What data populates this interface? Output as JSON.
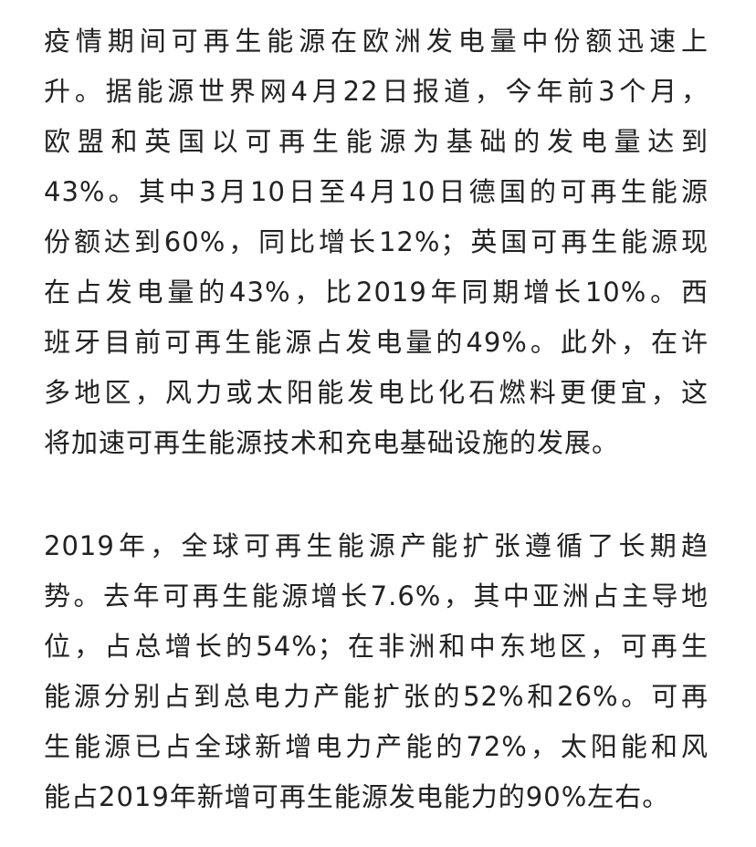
{
  "paragraphs": [
    {
      "lines": [
        "疫情期间可再生能源在欧洲发电量中份额迅速上",
        "升。据能源世界网4月22日报道，今年前3个月，",
        "欧盟和英国以可再生能源为基础的发电量达到",
        "43%。其中3月10日至4月10日德国的可再生能源",
        "份额达到60%，同比增长12%；英国可再生能源现",
        "在占发电量的43%，比2019年同期增长10%。西",
        "班牙目前可再生能源占发电量的49%。此外，在许",
        "多地区，风力或太阳能发电比化石燃料更便宜，这",
        "将加速可再生能源技术和充电基础设施的发展。"
      ]
    },
    {
      "lines": [
        "2019年，全球可再生能源产能扩张遵循了长期趋",
        "势。去年可再生能源增长7.6%，其中亚洲占主导地",
        "位，占总增长的54%；在非洲和中东地区，可再生",
        "能源分别占到总电力产能扩张的52%和26%。可再",
        "生能源已占全球新增电力产能的72%，太阳能和风",
        "能占2019年新增可再生能源发电能力的90%左右。"
      ]
    }
  ]
}
